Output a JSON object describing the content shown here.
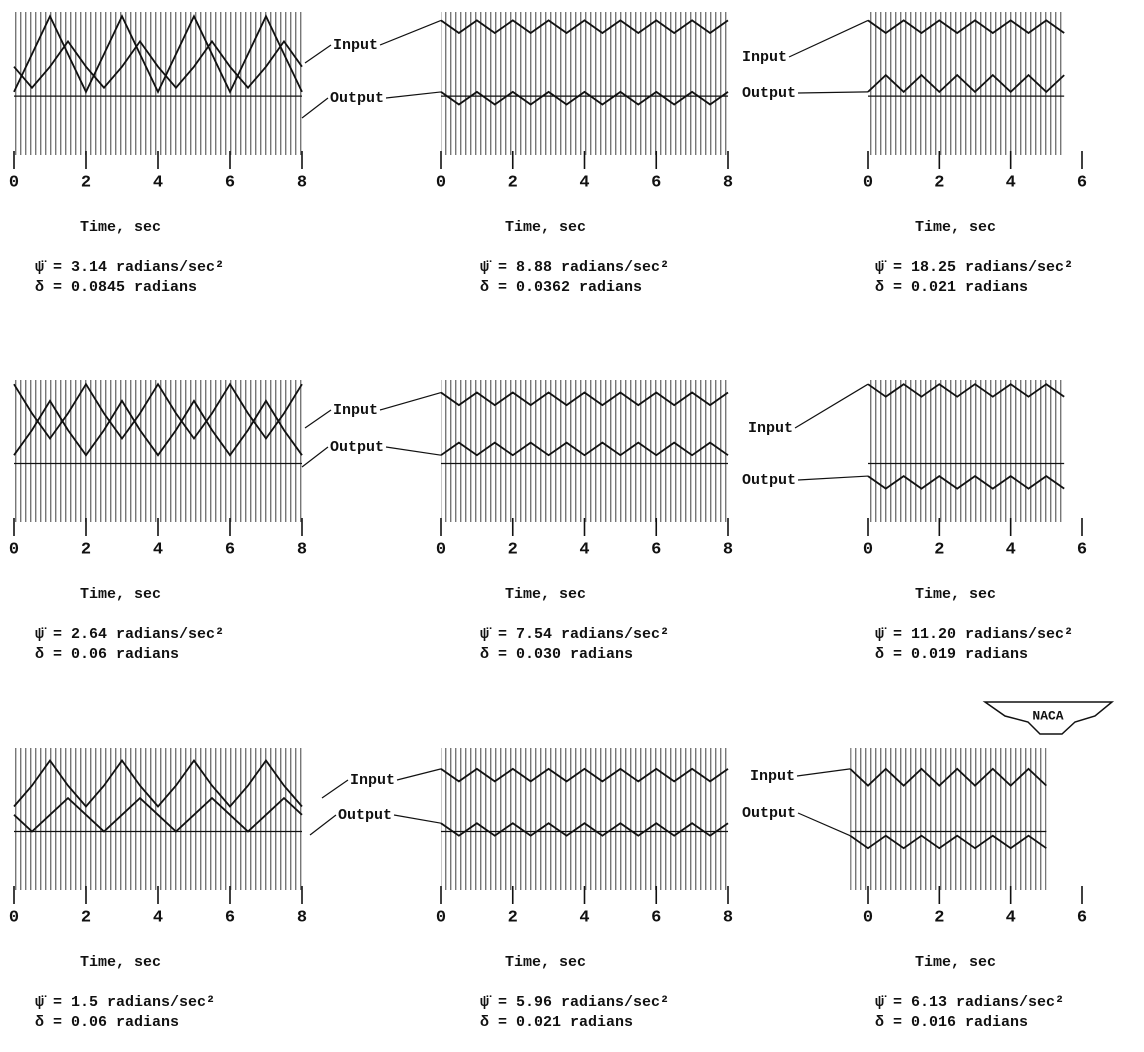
{
  "logo": "NACA",
  "chart_data": [
    {
      "type": "line",
      "x_label": "Time, sec",
      "annotations": [
        "ψ̈ = 3.14 radians/sec²",
        "δ = 0.0845 radians"
      ],
      "xlim": [
        0,
        8
      ],
      "xticks": [
        0,
        2,
        4,
        6,
        8
      ],
      "ylim": [
        -0.7,
        1
      ],
      "x": [
        0,
        0.5,
        1,
        1.5,
        2,
        2.5,
        3,
        3.5,
        4,
        4.5,
        5,
        5.5,
        6,
        6.5,
        7,
        7.5,
        8
      ],
      "series": [
        {
          "color": "#111",
          "values": [
            0.05,
            0.5,
            0.95,
            0.5,
            0.05,
            0.5,
            0.95,
            0.5,
            0.05,
            0.5,
            0.95,
            0.5,
            0.05,
            0.5,
            0.95,
            0.5,
            0.05
          ]
        },
        {
          "color": "#111",
          "values": [
            0.35,
            0.1,
            0.35,
            0.65,
            0.35,
            0.1,
            0.35,
            0.65,
            0.35,
            0.1,
            0.35,
            0.65,
            0.35,
            0.1,
            0.35,
            0.65,
            0.35
          ]
        }
      ]
    },
    {
      "type": "line",
      "x_label": "Time, sec",
      "annotations": [
        "ψ̈ = 8.88 radians/sec²",
        "δ = 0.0362 radians"
      ],
      "xlim": [
        0,
        8
      ],
      "xticks": [
        0,
        2,
        4,
        6,
        8
      ],
      "ylim": [
        -0.7,
        1
      ],
      "x": [
        0,
        0.5,
        1,
        1.5,
        2,
        2.5,
        3,
        3.5,
        4,
        4.5,
        5,
        5.5,
        6,
        6.5,
        7,
        7.5,
        8
      ],
      "series": [
        {
          "name": "Input",
          "color": "#111",
          "values": [
            0.9,
            0.75,
            0.9,
            0.75,
            0.9,
            0.75,
            0.9,
            0.75,
            0.9,
            0.75,
            0.9,
            0.75,
            0.9,
            0.75,
            0.9,
            0.75,
            0.9
          ]
        },
        {
          "name": "Output",
          "color": "#111",
          "values": [
            0.05,
            -0.1,
            0.05,
            -0.1,
            0.05,
            -0.1,
            0.05,
            -0.1,
            0.05,
            -0.1,
            0.05,
            -0.1,
            0.05,
            -0.1,
            0.05,
            -0.1,
            0.05
          ]
        }
      ]
    },
    {
      "type": "line",
      "x_label": "Time, sec",
      "annotations": [
        "ψ̈ = 18.25 radians/sec²",
        "δ = 0.021 radians"
      ],
      "xlim": [
        0,
        6
      ],
      "xticks": [
        0,
        2,
        4,
        6
      ],
      "ylim": [
        -0.7,
        1
      ],
      "x": [
        0,
        0.5,
        1,
        1.5,
        2,
        2.5,
        3,
        3.5,
        4,
        4.5,
        5,
        5.5
      ],
      "series": [
        {
          "name": "Input",
          "color": "#111",
          "values": [
            0.9,
            0.75,
            0.9,
            0.75,
            0.9,
            0.75,
            0.9,
            0.75,
            0.9,
            0.75,
            0.9,
            0.75
          ]
        },
        {
          "name": "Output",
          "color": "#111",
          "values": [
            0.05,
            0.25,
            0.05,
            0.25,
            0.05,
            0.25,
            0.05,
            0.25,
            0.05,
            0.25,
            0.05,
            0.25
          ]
        }
      ]
    },
    {
      "type": "line",
      "x_label": "Time, sec",
      "annotations": [
        "ψ̈ = 2.64 radians/sec²",
        "δ = 0.06 radians"
      ],
      "xlim": [
        0,
        8
      ],
      "xticks": [
        0,
        2,
        4,
        6,
        8
      ],
      "ylim": [
        -0.7,
        1
      ],
      "x": [
        0,
        0.5,
        1,
        1.5,
        2,
        2.5,
        3,
        3.5,
        4,
        4.5,
        5,
        5.5,
        6,
        6.5,
        7,
        7.5,
        8
      ],
      "series": [
        {
          "color": "#111",
          "values": [
            0.95,
            0.6,
            0.3,
            0.6,
            0.95,
            0.6,
            0.3,
            0.6,
            0.95,
            0.6,
            0.3,
            0.6,
            0.95,
            0.6,
            0.3,
            0.6,
            0.95
          ]
        },
        {
          "color": "#111",
          "values": [
            0.1,
            0.4,
            0.75,
            0.4,
            0.1,
            0.4,
            0.75,
            0.4,
            0.1,
            0.4,
            0.75,
            0.4,
            0.1,
            0.4,
            0.75,
            0.4,
            0.1
          ]
        }
      ]
    },
    {
      "type": "line",
      "x_label": "Time, sec",
      "annotations": [
        "ψ̈ = 7.54 radians/sec²",
        "δ = 0.030 radians"
      ],
      "xlim": [
        0,
        8
      ],
      "xticks": [
        0,
        2,
        4,
        6,
        8
      ],
      "ylim": [
        -0.7,
        1
      ],
      "x": [
        0,
        0.5,
        1,
        1.5,
        2,
        2.5,
        3,
        3.5,
        4,
        4.5,
        5,
        5.5,
        6,
        6.5,
        7,
        7.5,
        8
      ],
      "series": [
        {
          "name": "Input",
          "color": "#111",
          "values": [
            0.85,
            0.7,
            0.85,
            0.7,
            0.85,
            0.7,
            0.85,
            0.7,
            0.85,
            0.7,
            0.85,
            0.7,
            0.85,
            0.7,
            0.85,
            0.7,
            0.85
          ]
        },
        {
          "name": "Output",
          "color": "#111",
          "values": [
            0.1,
            0.25,
            0.1,
            0.25,
            0.1,
            0.25,
            0.1,
            0.25,
            0.1,
            0.25,
            0.1,
            0.25,
            0.1,
            0.25,
            0.1,
            0.25,
            0.1
          ]
        }
      ]
    },
    {
      "type": "line",
      "x_label": "Time, sec",
      "annotations": [
        "ψ̈ = 11.20 radians/sec²",
        "δ = 0.019 radians"
      ],
      "xlim": [
        0,
        6
      ],
      "xticks": [
        0,
        2,
        4,
        6
      ],
      "ylim": [
        -0.7,
        1
      ],
      "x": [
        0,
        0.5,
        1,
        1.5,
        2,
        2.5,
        3,
        3.5,
        4,
        4.5,
        5,
        5.5
      ],
      "series": [
        {
          "name": "Input",
          "color": "#111",
          "values": [
            0.95,
            0.8,
            0.95,
            0.8,
            0.95,
            0.8,
            0.95,
            0.8,
            0.95,
            0.8,
            0.95,
            0.8
          ]
        },
        {
          "name": "Output",
          "color": "#111",
          "values": [
            -0.15,
            -0.3,
            -0.15,
            -0.3,
            -0.15,
            -0.3,
            -0.15,
            -0.3,
            -0.15,
            -0.3,
            -0.15,
            -0.3
          ]
        }
      ]
    },
    {
      "type": "line",
      "x_label": "Time, sec",
      "annotations": [
        "ψ̈ = 1.5 radians/sec²",
        "δ = 0.06 radians"
      ],
      "xlim": [
        0,
        8
      ],
      "xticks": [
        0,
        2,
        4,
        6,
        8
      ],
      "ylim": [
        -0.7,
        1
      ],
      "x": [
        0,
        0.5,
        1,
        1.5,
        2,
        2.5,
        3,
        3.5,
        4,
        4.5,
        5,
        5.5,
        6,
        6.5,
        7,
        7.5,
        8
      ],
      "series": [
        {
          "color": "#111",
          "values": [
            0.3,
            0.55,
            0.85,
            0.55,
            0.3,
            0.55,
            0.85,
            0.55,
            0.3,
            0.55,
            0.85,
            0.55,
            0.3,
            0.55,
            0.85,
            0.55,
            0.3
          ]
        },
        {
          "color": "#111",
          "values": [
            0.2,
            0.0,
            0.2,
            0.4,
            0.2,
            0.0,
            0.2,
            0.4,
            0.2,
            0.0,
            0.2,
            0.4,
            0.2,
            0.0,
            0.2,
            0.4,
            0.2
          ]
        }
      ]
    },
    {
      "type": "line",
      "x_label": "Time, sec",
      "annotations": [
        "ψ̈ = 5.96 radians/sec²",
        "δ = 0.021 radians"
      ],
      "xlim": [
        0,
        8
      ],
      "xticks": [
        0,
        2,
        4,
        6,
        8
      ],
      "ylim": [
        -0.7,
        1
      ],
      "x": [
        0,
        0.5,
        1,
        1.5,
        2,
        2.5,
        3,
        3.5,
        4,
        4.5,
        5,
        5.5,
        6,
        6.5,
        7,
        7.5,
        8
      ],
      "series": [
        {
          "name": "Input",
          "color": "#111",
          "values": [
            0.75,
            0.6,
            0.75,
            0.6,
            0.75,
            0.6,
            0.75,
            0.6,
            0.75,
            0.6,
            0.75,
            0.6,
            0.75,
            0.6,
            0.75,
            0.6,
            0.75
          ]
        },
        {
          "name": "Output",
          "color": "#111",
          "values": [
            0.1,
            -0.05,
            0.1,
            -0.05,
            0.1,
            -0.05,
            0.1,
            -0.05,
            0.1,
            -0.05,
            0.1,
            -0.05,
            0.1,
            -0.05,
            0.1,
            -0.05,
            0.1
          ]
        }
      ]
    },
    {
      "type": "line",
      "x_label": "Time, sec",
      "annotations": [
        "ψ̈ = 6.13 radians/sec²",
        "δ = 0.016 radians"
      ],
      "xlim": [
        -0.8,
        6
      ],
      "xticks": [
        0,
        2,
        4,
        6
      ],
      "ylim": [
        -0.7,
        1
      ],
      "x": [
        -0.5,
        0,
        0.5,
        1,
        1.5,
        2,
        2.5,
        3,
        3.5,
        4,
        4.5,
        5
      ],
      "series": [
        {
          "name": "Input",
          "color": "#111",
          "values": [
            0.75,
            0.55,
            0.75,
            0.55,
            0.75,
            0.55,
            0.75,
            0.55,
            0.75,
            0.55,
            0.75,
            0.55
          ]
        },
        {
          "name": "Output",
          "color": "#111",
          "values": [
            -0.05,
            -0.2,
            -0.05,
            -0.2,
            -0.05,
            -0.2,
            -0.05,
            -0.2,
            -0.05,
            -0.2,
            -0.05,
            -0.2
          ]
        }
      ]
    }
  ]
}
